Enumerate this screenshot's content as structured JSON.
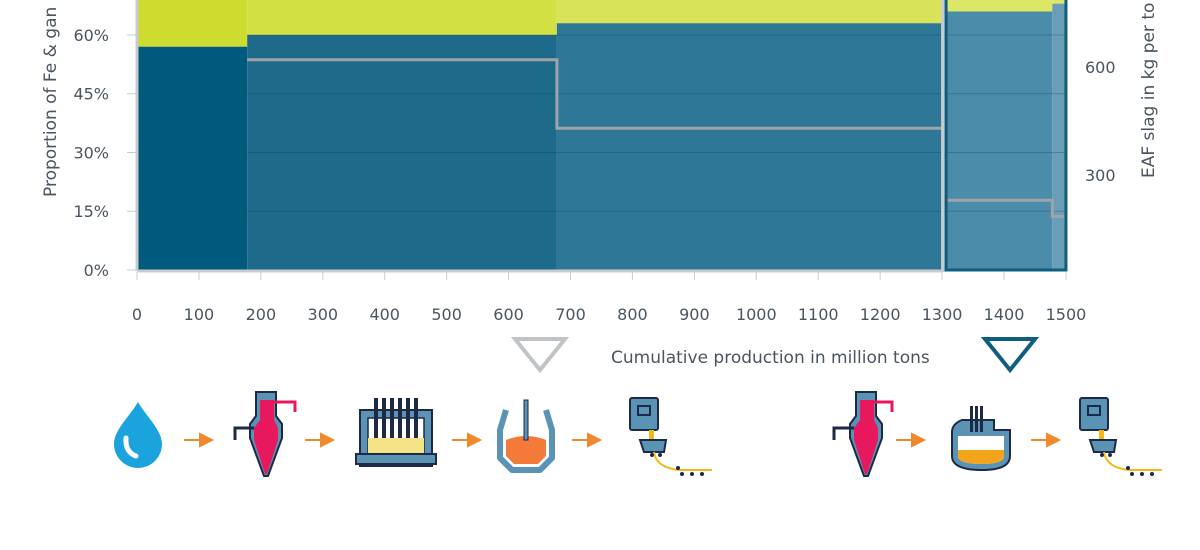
{
  "chart_data": {
    "type": "bar",
    "subtype": "variable-width stacked (marimekko) with step line",
    "xlabel": "Cumulative production in million tons",
    "ylabel": "Proportion of Fe & gan",
    "y2label": "EAF slag in kg per to",
    "xlim": [
      0,
      1500
    ],
    "ylim_visible": [
      0,
      68
    ],
    "x_ticks": [
      "0",
      "100",
      "200",
      "300",
      "400",
      "500",
      "600",
      "700",
      "800",
      "900",
      "1000",
      "1100",
      "1200",
      "1300",
      "1400",
      "1500"
    ],
    "y_ticks": [
      "0%",
      "15%",
      "30%",
      "45%",
      "60%"
    ],
    "y2_ticks": [
      "300",
      "600"
    ],
    "segments": [
      {
        "x_start": 0,
        "x_end": 178,
        "fe_percent": 57,
        "slag_kg": null,
        "color": "#005a7d",
        "top_color": "#cddc2e"
      },
      {
        "x_start": 178,
        "x_end": 678,
        "fe_percent": 60,
        "slag_kg": 620,
        "color": "#1d6a8a",
        "top_color": "#d3e043"
      },
      {
        "x_start": 678,
        "x_end": 1300,
        "fe_percent": 63,
        "slag_kg": 430,
        "color": "#2f7797",
        "top_color": "#d8e35a"
      },
      {
        "x_start": 1300,
        "x_end": 1478,
        "fe_percent": 66,
        "slag_kg": 230,
        "color": "#4b8caa",
        "top_color": "#dde765"
      },
      {
        "x_start": 1478,
        "x_end": 1500,
        "fe_percent": 68,
        "slag_kg": 185,
        "color": "#6a9db6",
        "top_color": "#dde765"
      }
    ],
    "markers": [
      {
        "x": 650,
        "color": "#c0c4c6"
      },
      {
        "x": 1400,
        "color": "#0f5e80"
      }
    ],
    "highlight_range": [
      1300,
      1500
    ],
    "grid": true
  },
  "process_icons": {
    "route_1": [
      "water-drop-icon",
      "blast-furnace-icon",
      "rotary-hearth-furnace-icon",
      "converter-icon",
      "continuous-casting-icon"
    ],
    "route_2": [
      "blast-furnace-icon",
      "electric-arc-furnace-icon",
      "continuous-casting-icon"
    ]
  },
  "colors": {
    "arrow": "#f0892c",
    "slag_line": "#a0a4a8",
    "water": "#1aa3dd",
    "hot_metal": "#e8185e"
  }
}
